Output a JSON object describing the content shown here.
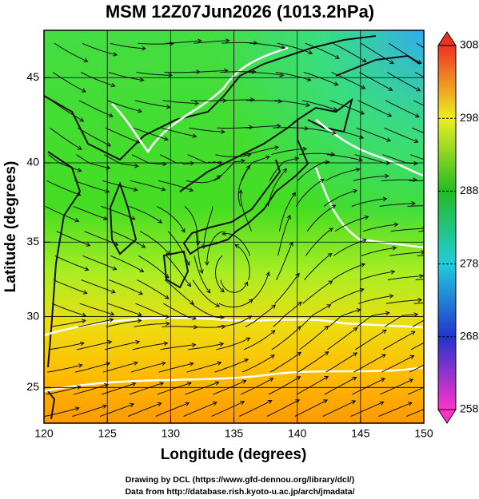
{
  "chart_data": {
    "type": "map",
    "title": "MSM 12Z07Jun2026 (1013.2hPa)",
    "x_label": "Longitude (degrees)",
    "y_label": "Latitude  (degrees)",
    "xlim": [
      120,
      150
    ],
    "ylim": [
      22.4,
      47.6
    ],
    "xticks": [
      120,
      125,
      130,
      135,
      140,
      145,
      150
    ],
    "yticks": [
      25,
      30,
      35,
      40,
      45
    ],
    "grid": true,
    "colorbar": {
      "lim": [
        258,
        308
      ],
      "ticks": [
        258,
        268,
        278,
        288,
        298,
        308
      ],
      "colors": [
        "#ff33cc",
        "#2233cc",
        "#22ccdd",
        "#22bb22",
        "#eeee22",
        "#ee3322"
      ]
    },
    "footer": [
      "Drawing by DCL (https://www.gfd-dennou.org/library/dcl/)",
      "Data from http://database.rish.kyoto-u.ac.jp/arch/jmadata/"
    ]
  }
}
